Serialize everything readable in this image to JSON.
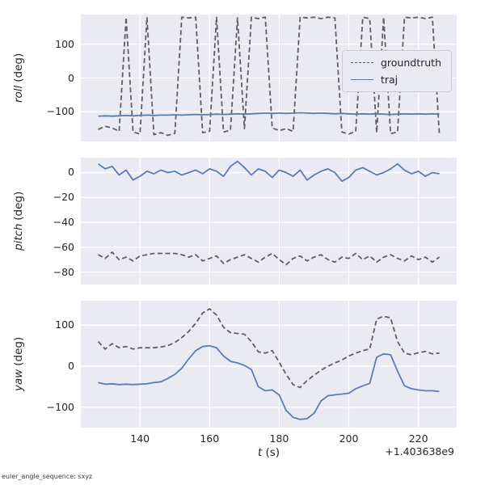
{
  "figure": {
    "xlabel_var": "t",
    "xlabel_unit": " (s)",
    "x_offset_text": "+1.403638e9",
    "footer": "euler_angle_sequence: sxyz",
    "legend": {
      "items": [
        {
          "label": "groundtruth",
          "style": "dashed",
          "color": "#5f5f5f"
        },
        {
          "label": "traj",
          "style": "solid",
          "color": "#5a7db6"
        }
      ]
    }
  },
  "style": {
    "axes_bg": "#eaeaf2",
    "grid": "#ffffff",
    "text": "#262626",
    "blue": "#5a7db6",
    "gray": "#5f5f5f"
  },
  "chart_data": [
    {
      "type": "line",
      "name": "roll",
      "ylabel_var": "roll",
      "ylabel_unit": " (deg)",
      "xlim": [
        123,
        231
      ],
      "ylim": [
        -188,
        188
      ],
      "yticks": [
        100,
        0,
        -100
      ],
      "xticks": [
        140,
        160,
        180,
        200,
        220
      ],
      "show_xticklabels": false,
      "x": [
        128,
        130,
        132,
        134,
        136,
        138,
        140,
        142,
        144,
        146,
        148,
        150,
        152,
        154,
        156,
        158,
        160,
        162,
        164,
        166,
        168,
        170,
        172,
        174,
        176,
        178,
        180,
        182,
        184,
        186,
        188,
        190,
        192,
        194,
        196,
        198,
        200,
        202,
        204,
        206,
        208,
        210,
        212,
        214,
        216,
        218,
        220,
        222,
        224,
        226
      ],
      "series": [
        {
          "name": "groundtruth",
          "color": "#5f5f5f",
          "dashed": true,
          "values": [
            -152,
            -143,
            -148,
            -158,
            180,
            -160,
            -166,
            180,
            -168,
            -162,
            -170,
            -164,
            180,
            178,
            180,
            -162,
            -158,
            180,
            -160,
            -155,
            178,
            -150,
            180,
            176,
            180,
            -148,
            -156,
            -150,
            -158,
            180,
            178,
            180,
            176,
            180,
            178,
            -160,
            -166,
            -158,
            180,
            176,
            -162,
            180,
            -165,
            -160,
            180,
            178,
            180,
            176,
            180,
            -166
          ]
        },
        {
          "name": "traj",
          "color": "#5a7db6",
          "dashed": false,
          "values": [
            -113,
            -112,
            -113,
            -112,
            -111,
            -112,
            -111,
            -110,
            -111,
            -110,
            -110,
            -109,
            -110,
            -109,
            -108,
            -109,
            -108,
            -107,
            -108,
            -107,
            -106,
            -107,
            -106,
            -105,
            -104,
            -105,
            -104,
            -105,
            -104,
            -103,
            -104,
            -105,
            -104,
            -105,
            -106,
            -105,
            -106,
            -107,
            -106,
            -107,
            -106,
            -107,
            -108,
            -107,
            -106,
            -107,
            -106,
            -107,
            -106,
            -107
          ]
        }
      ]
    },
    {
      "type": "line",
      "name": "pitch",
      "ylabel_var": "pitch",
      "ylabel_unit": " (deg)",
      "xlim": [
        123,
        231
      ],
      "ylim": [
        -90,
        12
      ],
      "yticks": [
        0,
        -20,
        -40,
        -60,
        -80
      ],
      "xticks": [
        140,
        160,
        180,
        200,
        220
      ],
      "show_xticklabels": false,
      "x": [
        128,
        130,
        132,
        134,
        136,
        138,
        140,
        142,
        144,
        146,
        148,
        150,
        152,
        154,
        156,
        158,
        160,
        162,
        164,
        166,
        168,
        170,
        172,
        174,
        176,
        178,
        180,
        182,
        184,
        186,
        188,
        190,
        192,
        194,
        196,
        198,
        200,
        202,
        204,
        206,
        208,
        210,
        212,
        214,
        216,
        218,
        220,
        222,
        224,
        226
      ],
      "series": [
        {
          "name": "groundtruth",
          "color": "#5f5f5f",
          "dashed": true,
          "values": [
            -66,
            -69,
            -64,
            -70,
            -68,
            -71,
            -67,
            -66,
            -65,
            -65,
            -65,
            -65,
            -66,
            -68,
            -66,
            -71,
            -69,
            -67,
            -73,
            -70,
            -68,
            -66,
            -69,
            -72,
            -68,
            -65,
            -70,
            -74,
            -69,
            -67,
            -71,
            -68,
            -66,
            -70,
            -72,
            -68,
            -69,
            -65,
            -70,
            -67,
            -72,
            -68,
            -66,
            -69,
            -71,
            -67,
            -70,
            -68,
            -72,
            -68
          ]
        },
        {
          "name": "traj",
          "color": "#5a7db6",
          "dashed": false,
          "values": [
            7,
            3,
            5,
            -2,
            2,
            -6,
            -3,
            1,
            -1,
            2,
            0,
            1,
            -2,
            0,
            2,
            -1,
            3,
            1,
            -3,
            5,
            9,
            4,
            -2,
            3,
            1,
            -4,
            2,
            0,
            -3,
            2,
            -6,
            -2,
            1,
            3,
            0,
            -7,
            -4,
            2,
            4,
            1,
            -2,
            0,
            3,
            7,
            2,
            -1,
            1,
            -3,
            0,
            -1
          ]
        }
      ]
    },
    {
      "type": "line",
      "name": "yaw",
      "ylabel_var": "yaw",
      "ylabel_unit": " (deg)",
      "xlim": [
        123,
        231
      ],
      "ylim": [
        -150,
        160
      ],
      "yticks": [
        100,
        0,
        -100
      ],
      "xticks": [
        140,
        160,
        180,
        200,
        220
      ],
      "show_xticklabels": true,
      "x": [
        128,
        130,
        132,
        134,
        136,
        138,
        140,
        142,
        144,
        146,
        148,
        150,
        152,
        154,
        156,
        158,
        160,
        162,
        164,
        166,
        168,
        170,
        172,
        174,
        176,
        178,
        180,
        182,
        184,
        186,
        188,
        190,
        192,
        194,
        196,
        198,
        200,
        202,
        204,
        206,
        208,
        210,
        212,
        214,
        216,
        218,
        220,
        222,
        224,
        226
      ],
      "series": [
        {
          "name": "groundtruth",
          "color": "#5f5f5f",
          "dashed": true,
          "values": [
            60,
            42,
            55,
            45,
            48,
            42,
            45,
            45,
            45,
            47,
            50,
            58,
            70,
            85,
            105,
            130,
            140,
            125,
            95,
            82,
            80,
            78,
            60,
            35,
            32,
            38,
            10,
            -20,
            -45,
            -52,
            -35,
            -22,
            -10,
            0,
            8,
            15,
            25,
            32,
            38,
            42,
            115,
            122,
            118,
            60,
            32,
            28,
            33,
            36,
            30,
            32
          ]
        },
        {
          "name": "traj",
          "color": "#5a7db6",
          "dashed": false,
          "values": [
            -40,
            -44,
            -43,
            -45,
            -44,
            -45,
            -44,
            -43,
            -40,
            -38,
            -30,
            -20,
            -5,
            18,
            38,
            48,
            50,
            45,
            25,
            12,
            8,
            2,
            -8,
            -50,
            -60,
            -58,
            -70,
            -108,
            -125,
            -130,
            -128,
            -115,
            -85,
            -72,
            -70,
            -68,
            -66,
            -55,
            -48,
            -42,
            22,
            30,
            28,
            -12,
            -48,
            -55,
            -58,
            -60,
            -60,
            -62
          ]
        }
      ]
    }
  ]
}
